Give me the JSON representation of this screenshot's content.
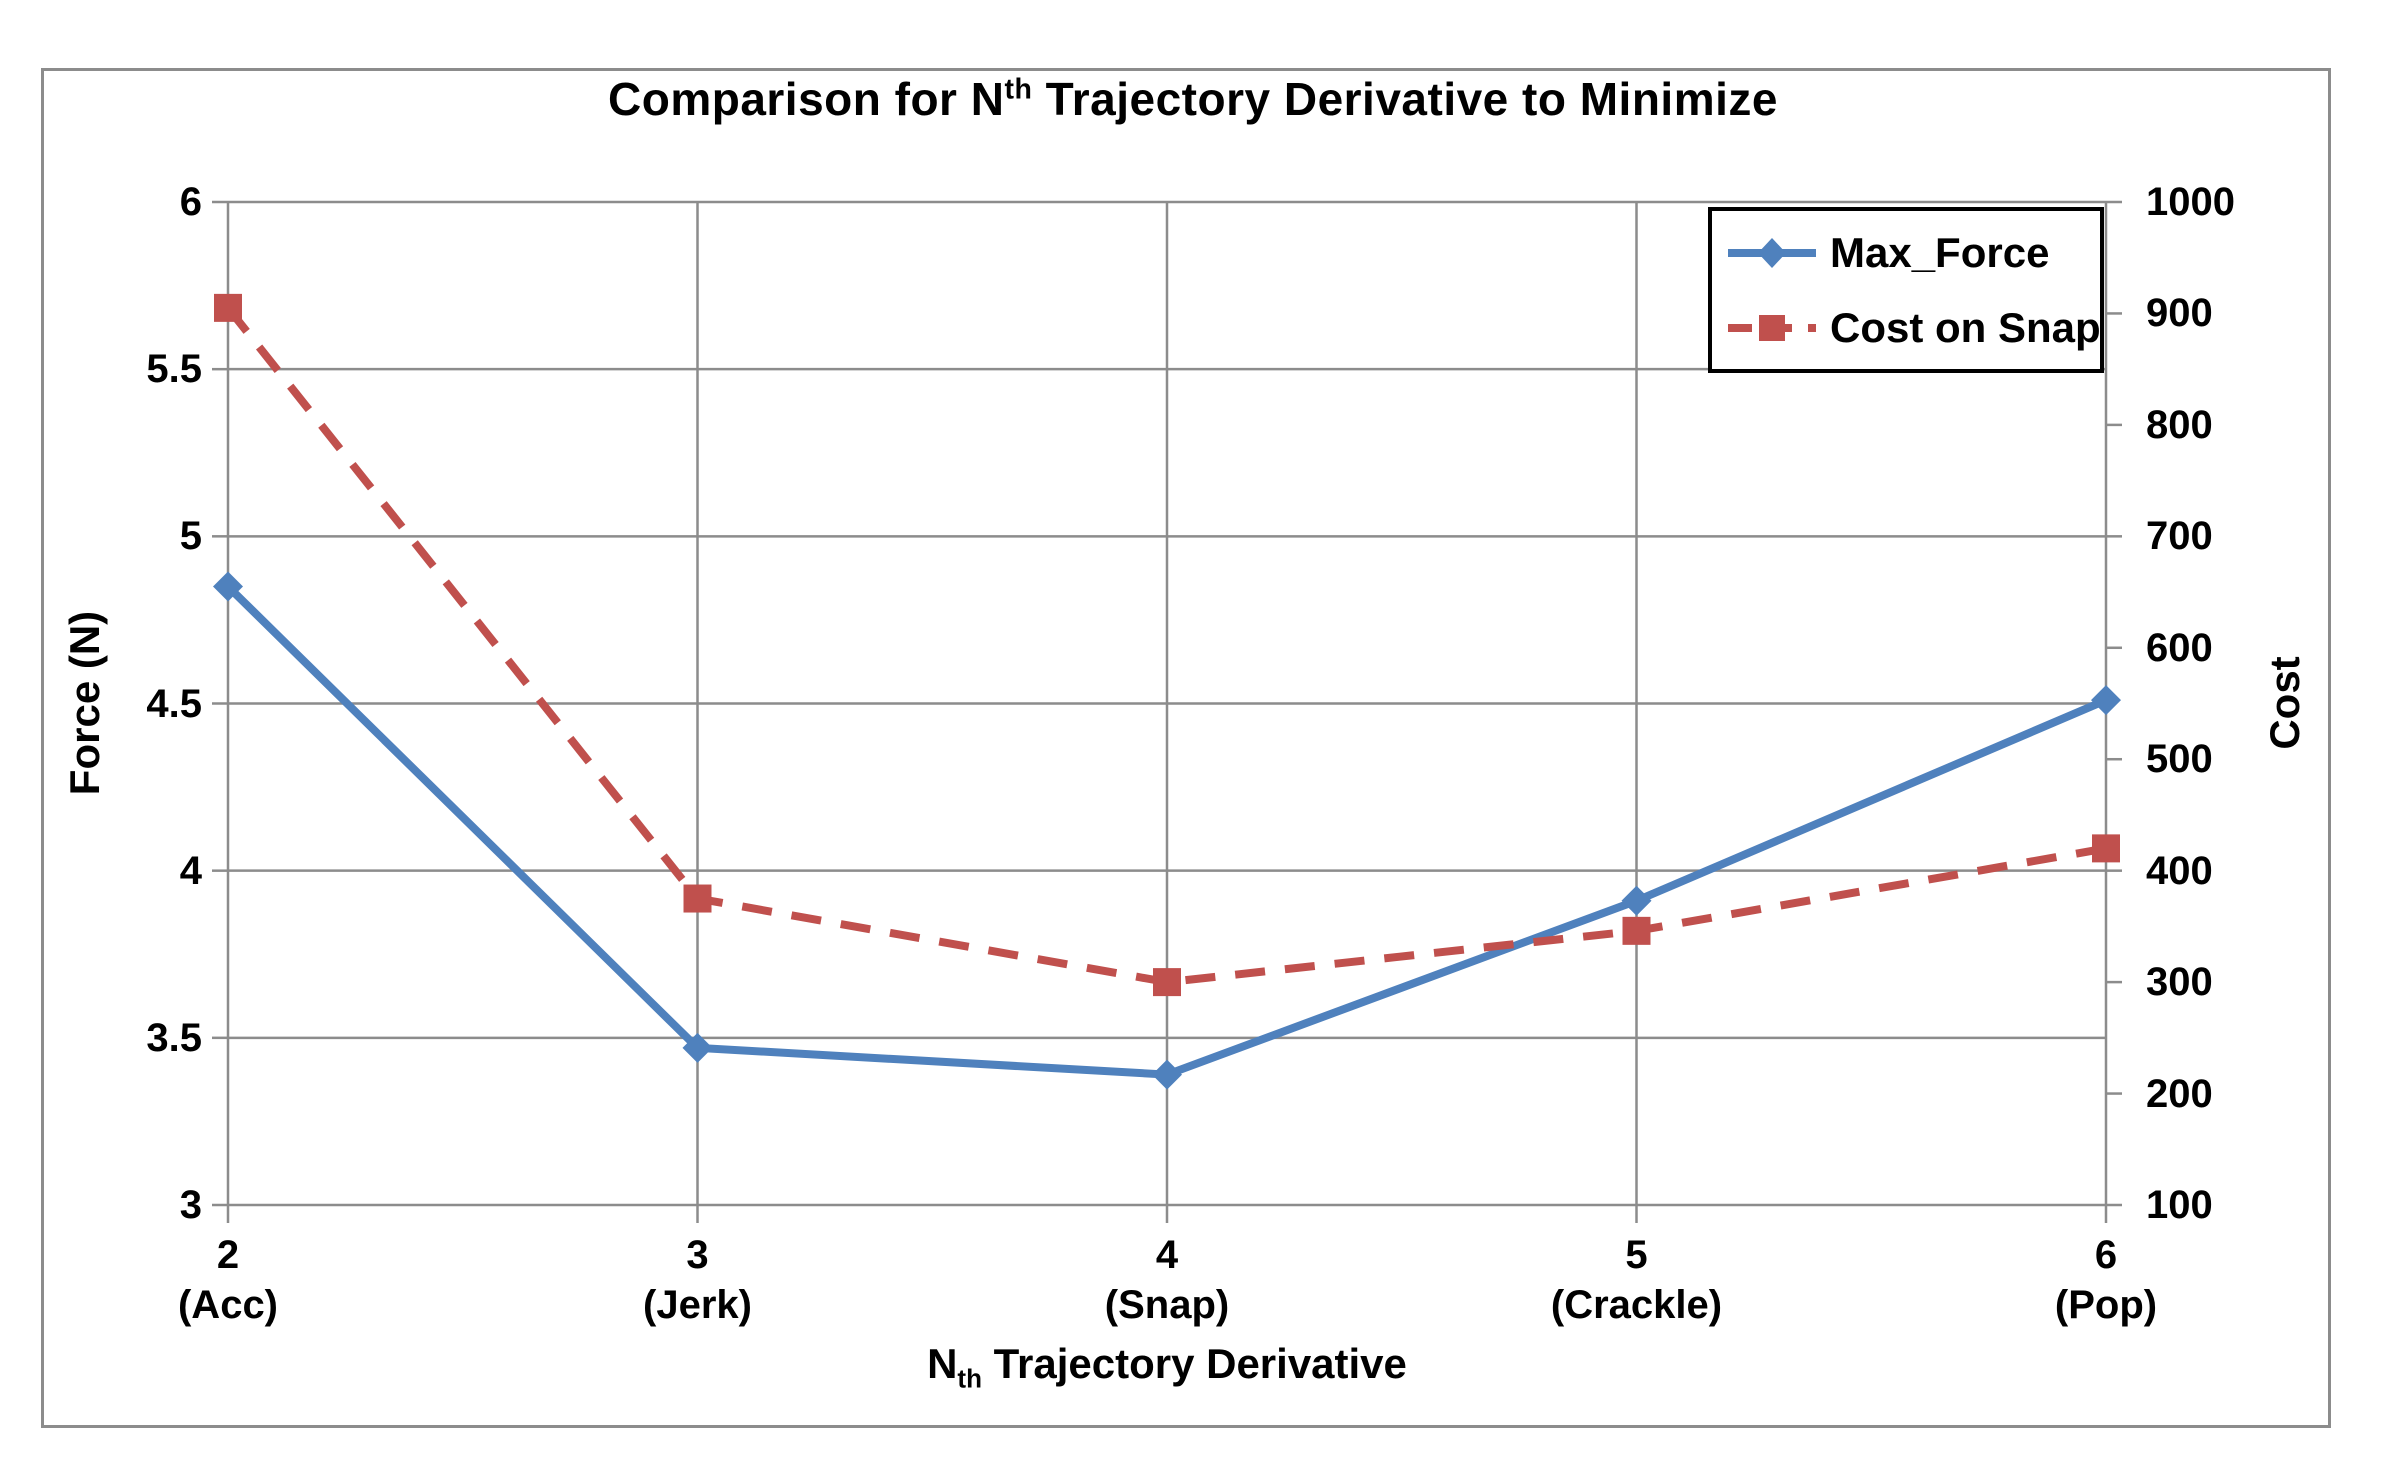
{
  "header": {
    "title_prefix": "Comparison for N",
    "title_sup": "th",
    "title_suffix": " Trajectory Derivative to Minimize"
  },
  "axes": {
    "x_title_prefix": "N",
    "x_title_sub": "th",
    "x_title_suffix": " Trajectory Derivative",
    "y_left_title": "Force (N)",
    "y_right_title": "Cost"
  },
  "chart_data": {
    "type": "line",
    "title": "Comparison for Nth Trajectory Derivative to Minimize",
    "x_axis": {
      "title": "Nth Trajectory Derivative",
      "categories": [
        "2",
        "3",
        "4",
        "5",
        "6"
      ],
      "category_sublabels": [
        "(Acc)",
        "(Jerk)",
        "(Snap)",
        "(Crackle)",
        "(Pop)"
      ]
    },
    "y_left_axis": {
      "title": "Force (N)",
      "min": 3,
      "max": 6,
      "step": 0.5,
      "tick_labels": [
        "6",
        "5.5",
        "5",
        "4.5",
        "4",
        "3.5",
        "3"
      ]
    },
    "y_right_axis": {
      "title": "Cost",
      "min": 100,
      "max": 1000,
      "step": 100,
      "tick_labels": [
        "1000",
        "900",
        "800",
        "700",
        "600",
        "500",
        "400",
        "300",
        "200",
        "100"
      ]
    },
    "grid": true,
    "legend": {
      "position": "top-right",
      "entries": [
        "Max_Force",
        "Cost on Snap"
      ]
    },
    "series": [
      {
        "name": "Max_Force",
        "axis": "left",
        "color": "#4F81BD",
        "line_style": "solid",
        "marker": "diamond",
        "values": [
          4.85,
          3.47,
          3.39,
          3.91,
          4.51
        ]
      },
      {
        "name": "Cost on Snap",
        "axis": "right",
        "color": "#C0504D",
        "line_style": "dashed",
        "marker": "square",
        "values": [
          905,
          375,
          300,
          346,
          420
        ]
      }
    ],
    "colors": {
      "gridline": "#8C8C8C",
      "chart_border": "#8C8C8C",
      "legend_border": "#000000",
      "text": "#000000"
    }
  }
}
